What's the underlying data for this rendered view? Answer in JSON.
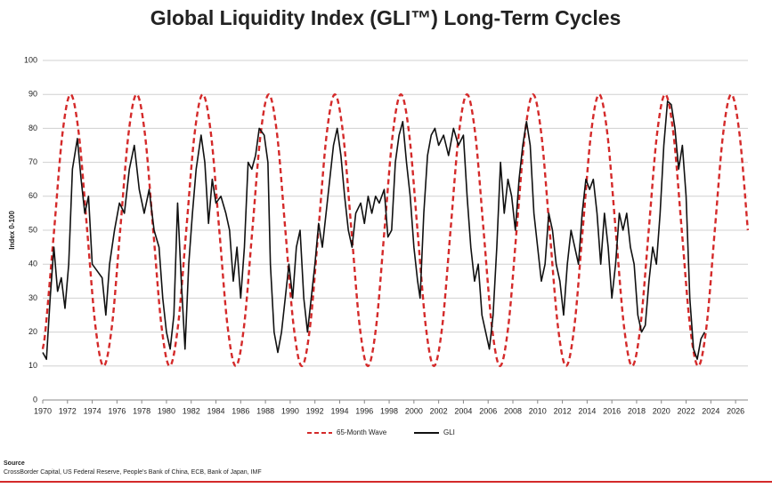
{
  "chart_data": {
    "type": "line",
    "title": "Global Liquidity Index (GLI™) Long-Term Cycles",
    "y_label": "Index 0-100",
    "xlim": [
      1970,
      2027
    ],
    "xticks": [
      1970,
      1972,
      1974,
      1976,
      1978,
      1980,
      1982,
      1984,
      1986,
      1988,
      1990,
      1992,
      1994,
      1996,
      1998,
      2000,
      2002,
      2004,
      2006,
      2008,
      2010,
      2012,
      2014,
      2016,
      2018,
      2020,
      2022,
      2024,
      2026
    ],
    "ylim": [
      0,
      100
    ],
    "yticks": [
      0,
      10,
      20,
      30,
      40,
      50,
      60,
      70,
      80,
      90,
      100
    ],
    "grid": true,
    "legend": "bottom",
    "series": [
      {
        "name": "65-Month Wave",
        "color": "#d42a2a",
        "dashed": true,
        "x": [
          1970.0,
          1970.25,
          1970.92,
          1971.59,
          1972.25,
          1972.92,
          1973.59,
          1974.26,
          1974.92,
          1975.59,
          1976.26,
          1976.93,
          1977.59,
          1978.26,
          1978.93,
          1979.6,
          1980.26,
          1980.93,
          1981.6,
          1982.27,
          1982.93,
          1983.6,
          1984.27,
          1984.94,
          1985.6,
          1986.27,
          1986.94,
          1987.61,
          1988.27,
          1988.94,
          1989.61,
          1990.28,
          1990.94,
          1991.61,
          1992.28,
          1992.95,
          1993.61,
          1994.28,
          1994.95,
          1995.62,
          1996.28,
          1996.95,
          1997.62,
          1998.29,
          1998.95,
          1999.62,
          2000.29,
          2000.96,
          2001.62,
          2002.29,
          2002.96,
          2003.63,
          2004.29,
          2004.96,
          2005.63,
          2006.3,
          2006.96,
          2007.63,
          2008.3,
          2008.97,
          2009.63,
          2010.3,
          2010.97,
          2011.64,
          2012.3,
          2012.97,
          2013.64,
          2014.31,
          2014.97,
          2015.64,
          2016.31,
          2016.98,
          2017.64,
          2018.31,
          2018.98,
          2019.65,
          2020.31,
          2020.98,
          2021.65,
          2022.32,
          2022.98,
          2023.65,
          2024.32,
          2024.99,
          2025.65,
          2026.32,
          2026.99
        ],
        "values": [
          15,
          21.7,
          50,
          78.3,
          90,
          78.3,
          50,
          21.7,
          10,
          21.7,
          50,
          78.3,
          90,
          78.3,
          50,
          21.7,
          10,
          21.7,
          50,
          78.3,
          90,
          78.3,
          50,
          21.7,
          10,
          21.7,
          50,
          78.3,
          90,
          78.3,
          50,
          21.7,
          10,
          21.7,
          50,
          78.3,
          90,
          78.3,
          50,
          21.7,
          10,
          21.7,
          50,
          78.3,
          90,
          78.3,
          50,
          21.7,
          10,
          21.7,
          50,
          78.3,
          90,
          78.3,
          50,
          21.7,
          10,
          21.7,
          50,
          78.3,
          90,
          78.3,
          50,
          21.7,
          10,
          21.7,
          50,
          78.3,
          90,
          78.3,
          50,
          21.7,
          10,
          21.7,
          50,
          78.3,
          90,
          78.3,
          50,
          21.7,
          10,
          21.7,
          50,
          78.3,
          90,
          78.3,
          50
        ]
      },
      {
        "name": "GLI",
        "color": "#111111",
        "dashed": false,
        "x": [
          1970.0,
          1970.3,
          1970.6,
          1970.9,
          1971.2,
          1971.5,
          1971.8,
          1972.1,
          1972.4,
          1972.8,
          1973.1,
          1973.4,
          1973.7,
          1974.0,
          1974.4,
          1974.8,
          1975.1,
          1975.4,
          1975.8,
          1976.2,
          1976.6,
          1977.0,
          1977.4,
          1977.8,
          1978.2,
          1978.6,
          1979.0,
          1979.4,
          1979.7,
          1980.0,
          1980.3,
          1980.6,
          1980.9,
          1981.2,
          1981.5,
          1981.8,
          1982.1,
          1982.4,
          1982.8,
          1983.1,
          1983.4,
          1983.7,
          1984.0,
          1984.4,
          1984.8,
          1985.1,
          1985.4,
          1985.7,
          1986.0,
          1986.3,
          1986.6,
          1986.9,
          1987.2,
          1987.5,
          1987.9,
          1988.2,
          1988.4,
          1988.7,
          1989.0,
          1989.3,
          1989.6,
          1989.9,
          1990.2,
          1990.5,
          1990.8,
          1991.1,
          1991.4,
          1991.7,
          1992.0,
          1992.3,
          1992.6,
          1992.9,
          1993.2,
          1993.5,
          1993.8,
          1994.1,
          1994.4,
          1994.7,
          1995.0,
          1995.3,
          1995.7,
          1996.0,
          1996.3,
          1996.6,
          1996.9,
          1997.2,
          1997.6,
          1997.9,
          1998.2,
          1998.5,
          1998.8,
          1999.1,
          1999.4,
          1999.7,
          2000.0,
          2000.3,
          2000.5,
          2000.8,
          2001.1,
          2001.4,
          2001.7,
          2002.0,
          2002.4,
          2002.8,
          2003.2,
          2003.6,
          2004.0,
          2004.3,
          2004.6,
          2004.9,
          2005.2,
          2005.5,
          2005.8,
          2006.1,
          2006.4,
          2006.7,
          2007.0,
          2007.3,
          2007.6,
          2007.9,
          2008.2,
          2008.5,
          2008.8,
          2009.1,
          2009.4,
          2009.7,
          2010.0,
          2010.3,
          2010.6,
          2010.9,
          2011.2,
          2011.5,
          2011.8,
          2012.1,
          2012.4,
          2012.7,
          2013.0,
          2013.3,
          2013.6,
          2013.9,
          2014.2,
          2014.5,
          2014.8,
          2015.1,
          2015.4,
          2015.7,
          2016.0,
          2016.3,
          2016.6,
          2016.9,
          2017.2,
          2017.5,
          2017.8,
          2018.1,
          2018.4,
          2018.7,
          2019.0,
          2019.3,
          2019.6,
          2019.9,
          2020.2,
          2020.5,
          2020.8,
          2021.1,
          2021.4,
          2021.7,
          2022.0,
          2022.3,
          2022.6,
          2022.9,
          2023.2,
          2023.5
        ],
        "values": [
          14,
          12,
          30,
          45,
          32,
          36,
          27,
          40,
          68,
          77,
          65,
          55,
          60,
          40,
          38,
          36,
          25,
          40,
          50,
          58,
          55,
          68,
          75,
          62,
          55,
          62,
          50,
          45,
          30,
          20,
          15,
          25,
          58,
          35,
          15,
          40,
          55,
          68,
          78,
          70,
          52,
          65,
          58,
          60,
          55,
          50,
          35,
          45,
          30,
          45,
          70,
          68,
          72,
          80,
          78,
          70,
          40,
          20,
          14,
          20,
          30,
          40,
          30,
          45,
          50,
          30,
          20,
          30,
          40,
          52,
          45,
          55,
          65,
          75,
          80,
          72,
          60,
          50,
          45,
          55,
          58,
          52,
          60,
          55,
          60,
          58,
          62,
          48,
          50,
          70,
          78,
          82,
          70,
          60,
          45,
          35,
          30,
          55,
          72,
          78,
          80,
          75,
          78,
          72,
          80,
          75,
          78,
          60,
          45,
          35,
          40,
          25,
          20,
          15,
          25,
          45,
          70,
          55,
          65,
          60,
          50,
          65,
          75,
          82,
          75,
          55,
          45,
          35,
          40,
          55,
          50,
          40,
          35,
          25,
          40,
          50,
          45,
          40,
          55,
          65,
          62,
          65,
          55,
          40,
          55,
          45,
          30,
          40,
          55,
          50,
          55,
          45,
          40,
          25,
          20,
          22,
          35,
          45,
          40,
          55,
          75,
          88,
          87,
          80,
          68,
          75,
          60,
          30,
          15,
          12,
          18,
          20
        ]
      }
    ],
    "source_label": "Source",
    "source": "CrossBorder Capital, US Federal Reserve, People's Bank of China, ECB, Bank of Japan, IMF"
  }
}
